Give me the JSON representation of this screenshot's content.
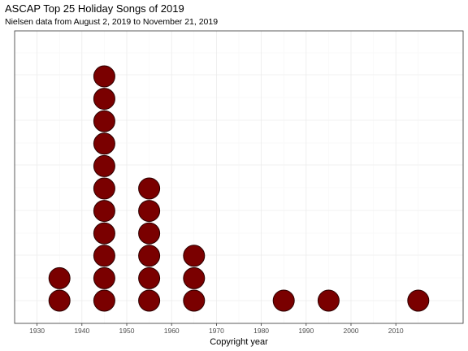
{
  "chart_data": {
    "type": "dotplot",
    "title": "ASCAP Top 25 Holiday Songs of 2019",
    "subtitle": "Nielsen data from August 2, 2019 to November 21, 2019",
    "xlabel": "Copyright year",
    "ylabel": "",
    "xlim": [
      1925,
      2025
    ],
    "x_ticks": [
      1930,
      1940,
      1950,
      1960,
      1970,
      1980,
      1990,
      2000,
      2010
    ],
    "bins": [
      {
        "x": 1935,
        "count": 2
      },
      {
        "x": 1945,
        "count": 11
      },
      {
        "x": 1955,
        "count": 6
      },
      {
        "x": 1965,
        "count": 3
      },
      {
        "x": 1985,
        "count": 1
      },
      {
        "x": 1995,
        "count": 1
      },
      {
        "x": 2015,
        "count": 1
      }
    ],
    "grid": true,
    "legend": "none",
    "colors": {
      "dot_fill": "#7a0000",
      "dot_stroke": "#2b0000",
      "panel_border": "#333333",
      "grid_major": "#ebebeb",
      "grid_minor": "#f5f5f5"
    }
  }
}
